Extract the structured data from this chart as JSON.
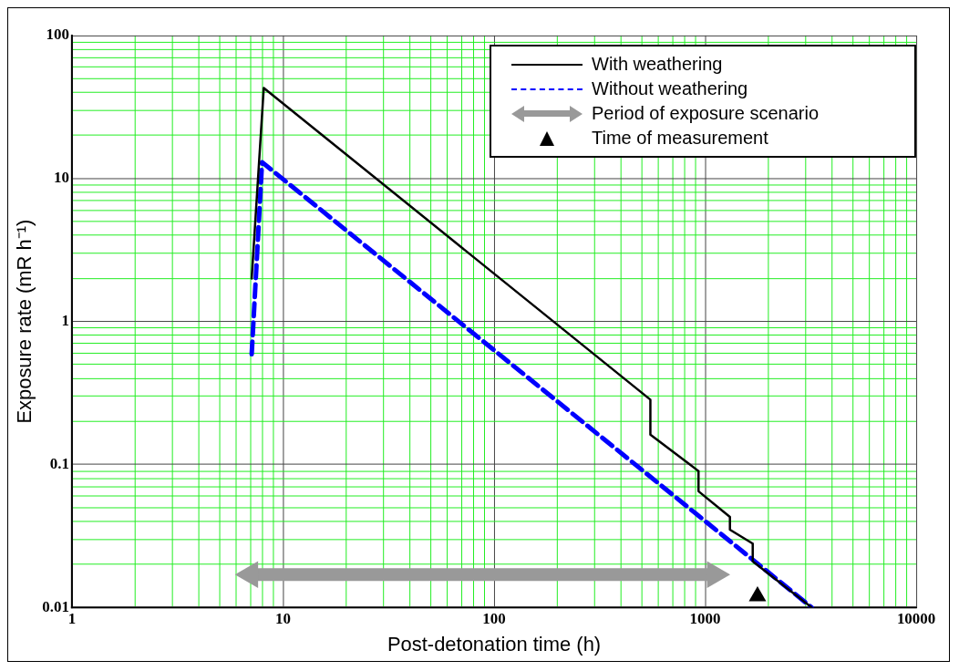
{
  "chart_data": {
    "type": "line",
    "xlabel": "Post-detonation time (h)",
    "ylabel": "Exposure rate (mR h⁻¹)",
    "log": "xy",
    "grid": true,
    "legend": "top right",
    "xlim": [
      1,
      10000
    ],
    "ylim": [
      0.01,
      100
    ],
    "xticks": [
      1,
      {
        "value": 2,
        "label": null
      },
      {
        "value": 3,
        "label": null
      },
      {
        "value": 4,
        "label": null
      },
      {
        "value": 5,
        "label": null
      },
      {
        "value": 6,
        "label": null
      },
      {
        "value": 7,
        "label": null
      },
      {
        "value": 8,
        "label": null
      },
      {
        "value": 9,
        "label": null
      },
      10,
      {
        "value": 20,
        "label": null
      },
      {
        "value": 30,
        "label": null
      },
      {
        "value": 40,
        "label": null
      },
      {
        "value": 50,
        "label": null
      },
      {
        "value": 60,
        "label": null
      },
      {
        "value": 70,
        "label": null
      },
      {
        "value": 80,
        "label": null
      },
      {
        "value": 90,
        "label": null
      },
      100,
      {
        "value": 200,
        "label": null
      },
      {
        "value": 300,
        "label": null
      },
      {
        "value": 400,
        "label": null
      },
      {
        "value": 500,
        "label": null
      },
      {
        "value": 600,
        "label": null
      },
      {
        "value": 700,
        "label": null
      },
      {
        "value": 800,
        "label": null
      },
      {
        "value": 900,
        "label": null
      },
      1000,
      {
        "value": 2000,
        "label": null
      },
      {
        "value": 3000,
        "label": null
      },
      {
        "value": 4000,
        "label": null
      },
      {
        "value": 5000,
        "label": null
      },
      {
        "value": 6000,
        "label": null
      },
      {
        "value": 7000,
        "label": null
      },
      {
        "value": 8000,
        "label": null
      },
      {
        "value": 9000,
        "label": null
      },
      10000
    ],
    "yticks": [
      0.01,
      {
        "value": 0.02,
        "label": null
      },
      {
        "value": 0.03,
        "label": null
      },
      {
        "value": 0.04,
        "label": null
      },
      {
        "value": 0.05,
        "label": null
      },
      {
        "value": 0.06,
        "label": null
      },
      {
        "value": 0.07,
        "label": null
      },
      {
        "value": 0.08,
        "label": null
      },
      {
        "value": 0.09,
        "label": null
      },
      0.1,
      {
        "value": 0.2,
        "label": null
      },
      {
        "value": 0.3,
        "label": null
      },
      {
        "value": 0.4,
        "label": null
      },
      {
        "value": 0.5,
        "label": null
      },
      {
        "value": 0.6,
        "label": null
      },
      {
        "value": 0.7,
        "label": null
      },
      {
        "value": 0.8,
        "label": null
      },
      {
        "value": 0.9,
        "label": null
      },
      1,
      {
        "value": 2,
        "label": null
      },
      {
        "value": 3,
        "label": null
      },
      {
        "value": 4,
        "label": null
      },
      {
        "value": 5,
        "label": null
      },
      {
        "value": 6,
        "label": null
      },
      {
        "value": 7,
        "label": null
      },
      {
        "value": 8,
        "label": null
      },
      {
        "value": 9,
        "label": null
      },
      10,
      {
        "value": 20,
        "label": null
      },
      {
        "value": 30,
        "label": null
      },
      {
        "value": 40,
        "label": null
      },
      {
        "value": 50,
        "label": null
      },
      {
        "value": 60,
        "label": null
      },
      {
        "value": 70,
        "label": null
      },
      {
        "value": 80,
        "label": null
      },
      {
        "value": 90,
        "label": null
      },
      100
    ],
    "series": [
      {
        "name": "With weathering",
        "color": "#000000",
        "line_style": "solid",
        "marker": "none",
        "x": [
          7.1,
          8.1,
          550,
          550,
          930,
          930,
          1310,
          1310,
          1680,
          1680,
          3200
        ],
        "values": [
          2,
          43,
          0.284,
          0.162,
          0.09,
          0.065,
          0.043,
          0.035,
          0.028,
          0.021,
          0.01
        ]
      },
      {
        "name": "Without weathering",
        "color": "#0000ff",
        "line_style": "dashed",
        "marker": "none",
        "x": [
          7.1,
          7.95,
          3200
        ],
        "values": [
          0.59,
          13,
          0.01
        ]
      },
      {
        "name": "Period of exposure scenario",
        "color": "#999999",
        "line_style": "solid",
        "marker": "triangle",
        "x": [
          7,
          1110
        ],
        "values": [
          0.017,
          0.017
        ]
      },
      {
        "name": "Time of measurement",
        "type": "scatter",
        "color": "#000000",
        "marker": "triangle",
        "x": [
          1770
        ],
        "values": [
          0.012
        ]
      }
    ]
  }
}
